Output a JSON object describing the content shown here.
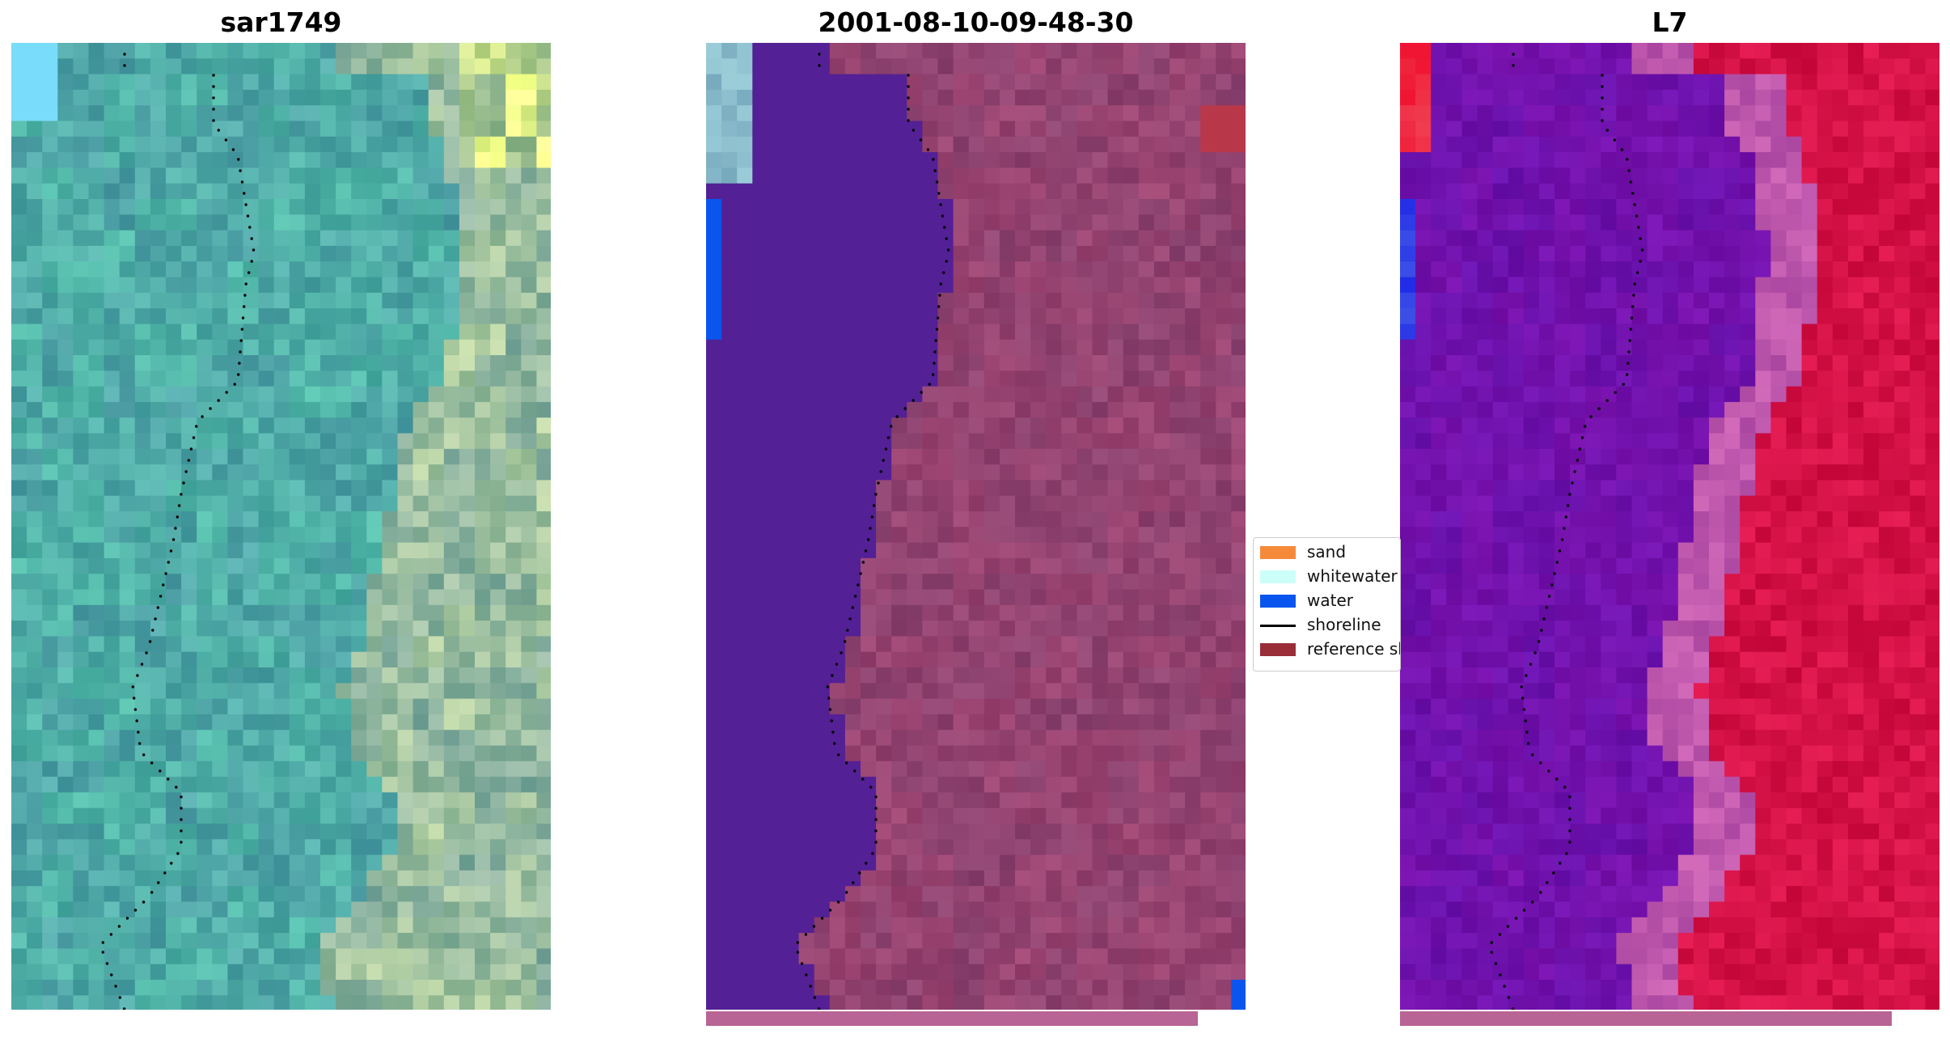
{
  "panels": [
    {
      "title": "sar1749",
      "image": "satellite-rgb-tile"
    },
    {
      "title": "2001-08-10-09-48-30",
      "image": "classified-overlay-tile"
    },
    {
      "title": "L7",
      "image": "false-color-tile"
    }
  ],
  "legend": {
    "items": [
      {
        "label": "sand",
        "color": "#f58a3a",
        "kind": "patch"
      },
      {
        "label": "whitewater",
        "color": "#ccfff8",
        "kind": "patch"
      },
      {
        "label": "water",
        "color": "#0a55ee",
        "kind": "patch"
      },
      {
        "label": "shoreline",
        "color": "#000000",
        "kind": "line"
      },
      {
        "label": "reference shoreline",
        "color": "#9a2e38",
        "kind": "patch"
      }
    ]
  },
  "colors": {
    "class_water": "#542096",
    "land_overlay": "#8a4478",
    "l7_water": "#6a12a8",
    "l7_land": "#c8083a"
  }
}
